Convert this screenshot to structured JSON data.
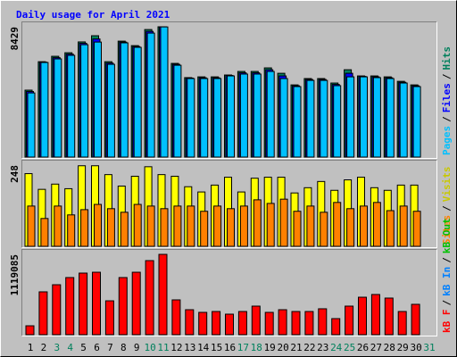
{
  "chart_data": {
    "type": "bar-panels",
    "title": "Daily usage for April 2021",
    "categories": [
      "1",
      "2",
      "3",
      "4",
      "5",
      "6",
      "7",
      "8",
      "9",
      "10",
      "11",
      "12",
      "13",
      "14",
      "15",
      "16",
      "17",
      "18",
      "19",
      "20",
      "21",
      "22",
      "23",
      "24",
      "25",
      "26",
      "27",
      "28",
      "29",
      "30",
      "31"
    ],
    "category_colors": [
      "#000000",
      "#000000",
      "#00805c",
      "#00805c",
      "#000000",
      "#000000",
      "#000000",
      "#000000",
      "#000000",
      "#00805c",
      "#00805c",
      "#000000",
      "#000000",
      "#000000",
      "#000000",
      "#000000",
      "#00805c",
      "#00805c",
      "#000000",
      "#000000",
      "#000000",
      "#000000",
      "#000000",
      "#00805c",
      "#00805c",
      "#000000",
      "#000000",
      "#000000",
      "#000000",
      "#000000",
      "#00805c"
    ],
    "panels": [
      {
        "ylim": [
          0,
          8429
        ],
        "yticks": [
          8429
        ],
        "legend": [
          {
            "text": "Pages",
            "color": "#00c0ff"
          },
          {
            "text": "/",
            "color": "#000000"
          },
          {
            "text": "Files",
            "color": "#0000ff"
          },
          {
            "text": "/",
            "color": "#000000"
          },
          {
            "text": "Hits",
            "color": "#00805c"
          }
        ],
        "series": [
          {
            "name": "Hits",
            "color": "#00805c",
            "values": [
              4330,
              6170,
              6520,
              6750,
              7450,
              7850,
              6170,
              7500,
              7210,
              8250,
              8429,
              6060,
              5140,
              5190,
              5190,
              5310,
              5540,
              5540,
              5770,
              5420,
              4670,
              5080,
              5080,
              4790,
              5650,
              5250,
              5250,
              5190,
              4900,
              4670,
              null
            ]
          },
          {
            "name": "Files",
            "color": "#0000ff",
            "values": [
              4240,
              6140,
              6430,
              6660,
              7360,
              7640,
              6080,
              7440,
              7150,
              8130,
              8425,
              6000,
              5110,
              5130,
              5130,
              5280,
              5450,
              5450,
              5650,
              5250,
              4610,
              5020,
              5020,
              4700,
              5420,
              5220,
              5190,
              5130,
              4840,
              4610,
              null
            ]
          },
          {
            "name": "Pages",
            "color": "#00c0ff",
            "values": [
              4150,
              6120,
              6350,
              6580,
              7270,
              7440,
              6000,
              7390,
              7100,
              8020,
              8420,
              5940,
              5080,
              5080,
              5080,
              5250,
              5370,
              5370,
              5540,
              5080,
              4560,
              4960,
              4960,
              4620,
              5190,
              5190,
              5140,
              5080,
              4790,
              4560,
              null
            ]
          }
        ]
      },
      {
        "ylim": [
          0,
          248
        ],
        "yticks": [
          248
        ],
        "legend": [
          {
            "text": "Sites",
            "color": "#ff8000"
          },
          {
            "text": "/",
            "color": "#000000"
          },
          {
            "text": "Visits",
            "color": "#c8c800"
          }
        ],
        "series": [
          {
            "name": "Visits",
            "color": "#ffff00",
            "values": [
              222,
              174,
              190,
              176,
              246,
              246,
              219,
              184,
              214,
              243,
              219,
              214,
              182,
              166,
              187,
              211,
              166,
              208,
              211,
              211,
              163,
              179,
              198,
              171,
              203,
              211,
              179,
              171,
              187,
              187,
              null
            ]
          },
          {
            "name": "Sites",
            "color": "#ff8000",
            "values": [
              123,
              85,
              123,
              96,
              112,
              128,
              115,
              104,
              128,
              123,
              115,
              123,
              123,
              107,
              123,
              115,
              123,
              142,
              131,
              144,
              107,
              123,
              104,
              134,
              115,
              123,
              134,
              109,
              123,
              107,
              null
            ]
          }
        ]
      },
      {
        "ylim": [
          0,
          1119085
        ],
        "yticks": [
          1119085
        ],
        "legend": [
          {
            "text": "kB F",
            "color": "#ff0000"
          },
          {
            "text": "/",
            "color": "#000000"
          },
          {
            "text": "kB In",
            "color": "#0080ff"
          },
          {
            "text": "/",
            "color": "#000000"
          },
          {
            "text": "kB Out",
            "color": "#00c000"
          }
        ],
        "series": [
          {
            "name": "kB F",
            "color": "#ff0000",
            "values": [
              124000,
              597000,
              696000,
              796000,
              858000,
              870000,
              472000,
              796000,
              870000,
              1032000,
              1119085,
              485000,
              348000,
              311000,
              323000,
              286000,
              323000,
              398000,
              311000,
              348000,
              323000,
              323000,
              361000,
              224000,
              398000,
              522000,
              560000,
              510000,
              323000,
              423000,
              null
            ]
          }
        ]
      }
    ]
  }
}
